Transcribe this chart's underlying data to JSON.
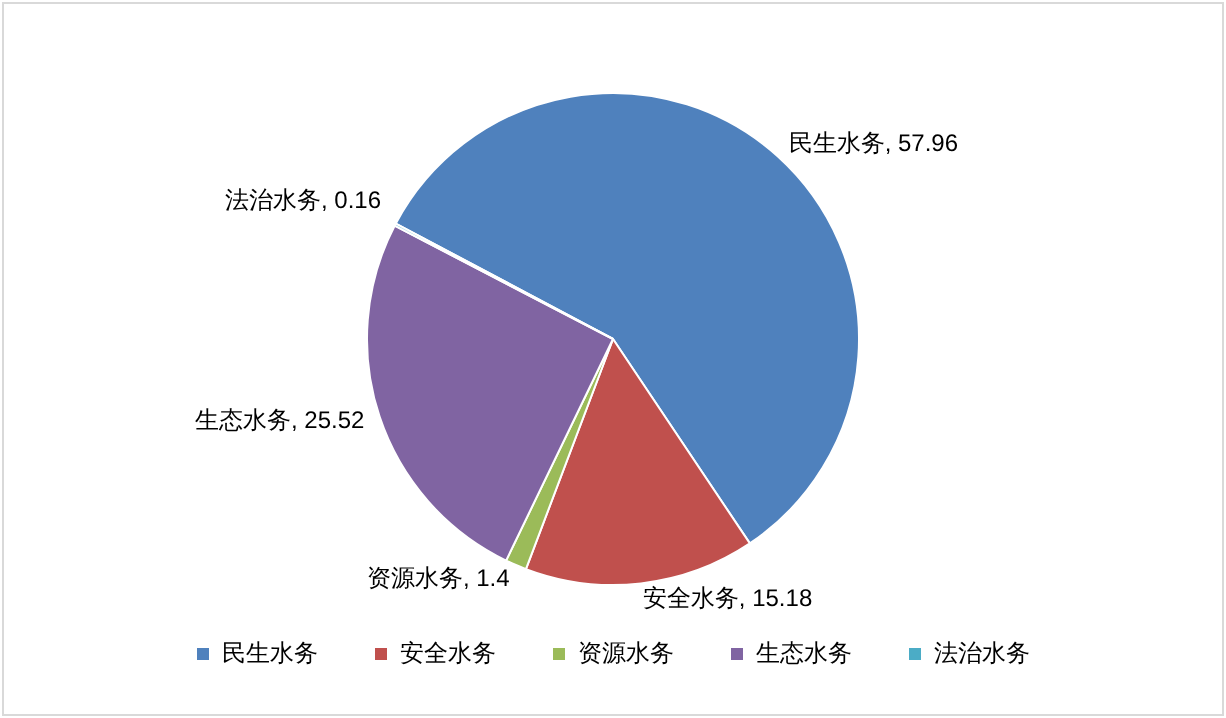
{
  "chart_data": {
    "type": "pie",
    "categories": [
      "民生水务",
      "安全水务",
      "资源水务",
      "生态水务",
      "法治水务"
    ],
    "values": [
      57.96,
      15.18,
      1.4,
      25.52,
      0.16
    ],
    "colors": [
      "#4f81bd",
      "#c0504d",
      "#9bbb59",
      "#8064a2",
      "#4bacc6"
    ],
    "value_labels": [
      "民生水务, 57.96",
      "安全水务, 15.18",
      "资源水务, 1.4",
      "生态水务, 25.52",
      "法治水务, 0.16"
    ],
    "legend": "bottom"
  }
}
